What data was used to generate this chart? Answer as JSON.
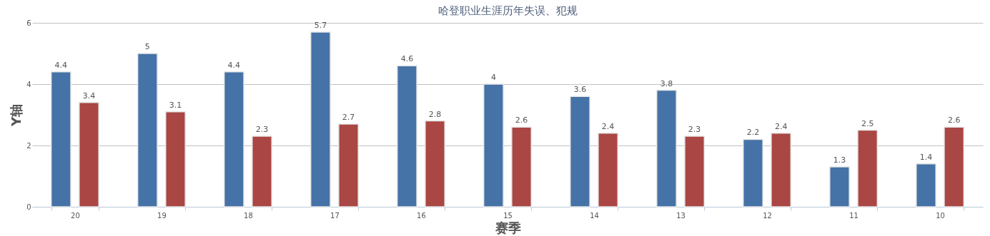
{
  "chart_data": {
    "type": "bar",
    "title": "哈登职业生涯历年失误、犯规",
    "xlabel": "赛季",
    "ylabel": "Y轴",
    "categories": [
      "20",
      "19",
      "18",
      "17",
      "16",
      "15",
      "14",
      "13",
      "12",
      "11",
      "10"
    ],
    "series": [
      {
        "color": "#4572a7",
        "values": [
          4.4,
          5,
          4.4,
          5.7,
          4.6,
          4,
          3.6,
          3.8,
          2.2,
          1.3,
          1.4
        ]
      },
      {
        "color": "#aa4643",
        "values": [
          3.4,
          3.1,
          2.3,
          2.7,
          2.8,
          2.6,
          2.4,
          2.3,
          2.4,
          2.5,
          2.6
        ]
      }
    ],
    "ylim": [
      0,
      6
    ],
    "yticks": [
      0,
      2,
      4,
      6
    ],
    "grid": "y",
    "data_labels": true,
    "legend": false
  }
}
